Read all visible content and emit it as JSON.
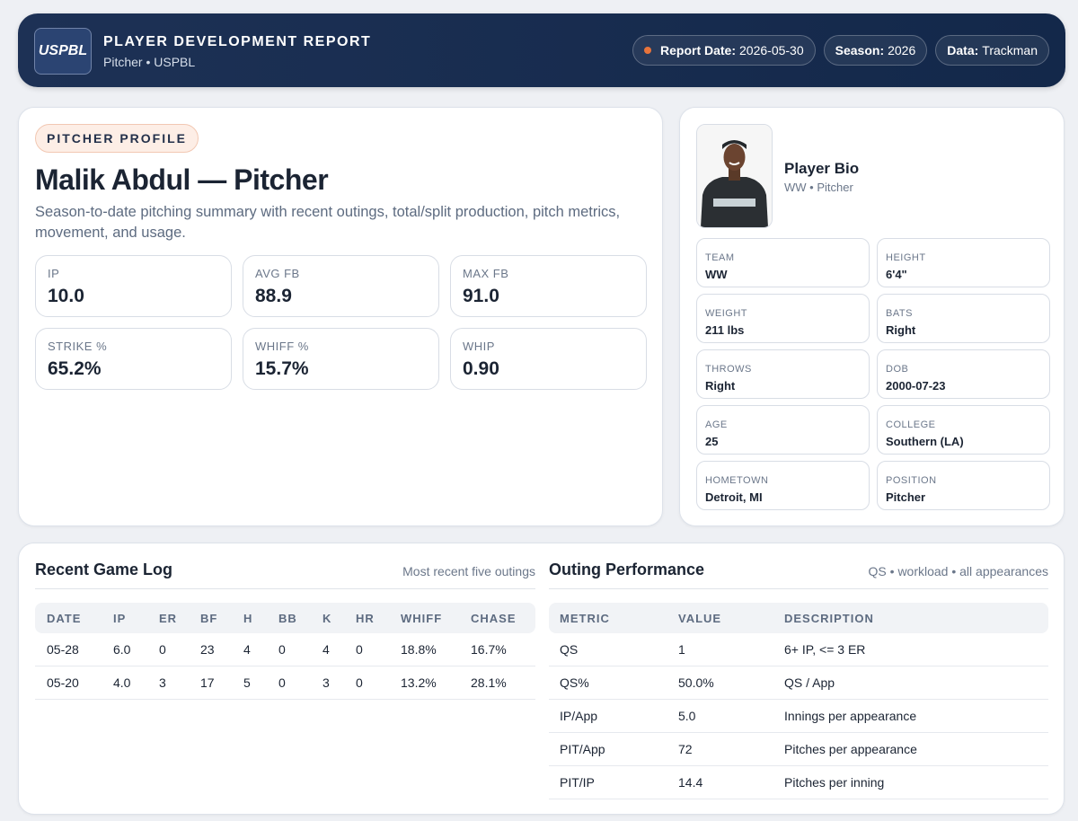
{
  "header": {
    "logo": "USPBL",
    "title": "PLAYER DEVELOPMENT REPORT",
    "subtitle": "Pitcher • USPBL",
    "pills": [
      {
        "label": "Report Date:",
        "value": "2026-05-30"
      },
      {
        "label": "Season:",
        "value": "2026"
      },
      {
        "label": "Data:",
        "value": "Trackman"
      }
    ]
  },
  "profile": {
    "badge": "PITCHER PROFILE",
    "name": "Malik Abdul — Pitcher",
    "description": "Season-to-date pitching summary with recent outings, total/split production, pitch metrics, movement, and usage.",
    "stats": [
      {
        "label": "IP",
        "value": "10.0"
      },
      {
        "label": "AVG FB",
        "value": "88.9"
      },
      {
        "label": "MAX FB",
        "value": "91.0"
      },
      {
        "label": "STRIKE %",
        "value": "65.2%"
      },
      {
        "label": "WHIFF %",
        "value": "15.7%"
      },
      {
        "label": "WHIP",
        "value": "0.90"
      }
    ]
  },
  "bio": {
    "title": "Player Bio",
    "subtitle": "WW • Pitcher",
    "fields": [
      {
        "label": "TEAM",
        "value": "WW"
      },
      {
        "label": "HEIGHT",
        "value": "6'4\""
      },
      {
        "label": "WEIGHT",
        "value": "211 lbs"
      },
      {
        "label": "BATS",
        "value": "Right"
      },
      {
        "label": "THROWS",
        "value": "Right"
      },
      {
        "label": "DOB",
        "value": "2000-07-23"
      },
      {
        "label": "AGE",
        "value": "25"
      },
      {
        "label": "COLLEGE",
        "value": "Southern (LA)"
      },
      {
        "label": "HOMETOWN",
        "value": "Detroit, MI"
      },
      {
        "label": "POSITION",
        "value": "Pitcher"
      }
    ]
  },
  "game_log": {
    "title": "Recent Game Log",
    "note": "Most recent five outings",
    "columns": [
      "DATE",
      "IP",
      "ER",
      "BF",
      "H",
      "BB",
      "K",
      "HR",
      "WHIFF",
      "CHASE"
    ],
    "rows": [
      [
        "05-28",
        "6.0",
        "0",
        "23",
        "4",
        "0",
        "4",
        "0",
        "18.8%",
        "16.7%"
      ],
      [
        "05-20",
        "4.0",
        "3",
        "17",
        "5",
        "0",
        "3",
        "0",
        "13.2%",
        "28.1%"
      ]
    ]
  },
  "outing": {
    "title": "Outing Performance",
    "note": "QS • workload • all appearances",
    "columns": [
      "METRIC",
      "VALUE",
      "DESCRIPTION"
    ],
    "rows": [
      [
        "QS",
        "1",
        "6+ IP, <= 3 ER"
      ],
      [
        "QS%",
        "50.0%",
        "QS / App"
      ],
      [
        "IP/App",
        "5.0",
        "Innings per appearance"
      ],
      [
        "PIT/App",
        "72",
        "Pitches per appearance"
      ],
      [
        "PIT/IP",
        "14.4",
        "Pitches per inning"
      ]
    ]
  }
}
